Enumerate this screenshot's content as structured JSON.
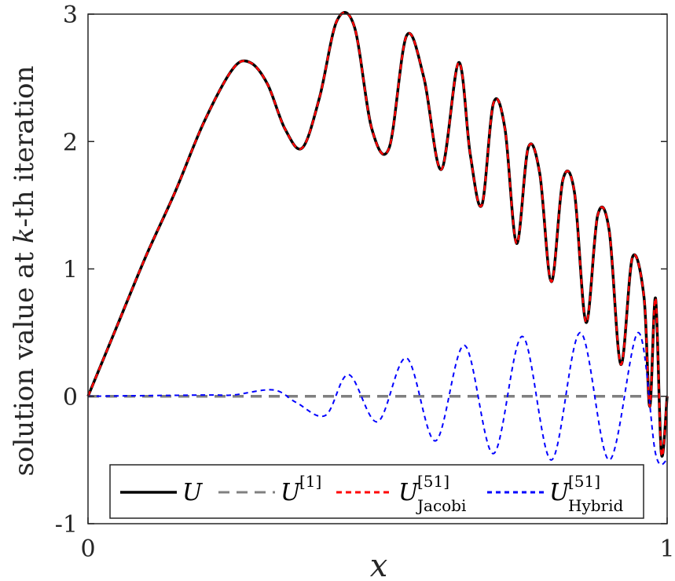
{
  "chart_data": {
    "type": "line",
    "xlabel": "x",
    "ylabel": "solution value at k-th iteration",
    "xlim": [
      0,
      1
    ],
    "ylim": [
      -1,
      3
    ],
    "xticks": [
      "0",
      "1"
    ],
    "yticks": [
      "-1",
      "0",
      "1",
      "2",
      "3"
    ],
    "grid": false,
    "legend_position": "bottom, horizontal",
    "series": [
      {
        "name": "U",
        "color": "#000000",
        "style": "solid",
        "x": [
          0,
          0.05,
          0.1,
          0.15,
          0.2,
          0.25,
          0.28,
          0.31,
          0.34,
          0.37,
          0.4,
          0.43,
          0.46,
          0.49,
          0.52,
          0.55,
          0.58,
          0.61,
          0.64,
          0.66,
          0.68,
          0.7,
          0.72,
          0.74,
          0.76,
          0.78,
          0.8,
          0.82,
          0.84,
          0.86,
          0.88,
          0.9,
          0.92,
          0.94,
          0.96,
          0.97,
          0.98,
          0.99,
          1.0
        ],
        "y": [
          0,
          0.55,
          1.1,
          1.6,
          2.15,
          2.57,
          2.62,
          2.45,
          2.1,
          1.95,
          2.35,
          2.95,
          2.9,
          2.1,
          1.95,
          2.83,
          2.5,
          1.78,
          2.62,
          1.9,
          1.5,
          2.3,
          2.1,
          1.2,
          1.95,
          1.75,
          0.9,
          1.7,
          1.6,
          0.58,
          1.42,
          1.3,
          0.25,
          1.09,
          0.78,
          -0.08,
          0.77,
          -0.45,
          0
        ]
      },
      {
        "name": "U^[1]",
        "color": "#808080",
        "style": "dashed",
        "x": [
          0,
          1
        ],
        "y": [
          0,
          0
        ]
      },
      {
        "name": "U_Jacobi^[51]",
        "color": "#ff0000",
        "style": "dashed",
        "x": [
          0,
          0.05,
          0.1,
          0.15,
          0.2,
          0.25,
          0.28,
          0.31,
          0.34,
          0.37,
          0.4,
          0.43,
          0.46,
          0.49,
          0.52,
          0.55,
          0.58,
          0.61,
          0.64,
          0.66,
          0.68,
          0.7,
          0.72,
          0.74,
          0.76,
          0.78,
          0.8,
          0.82,
          0.84,
          0.86,
          0.88,
          0.9,
          0.92,
          0.94,
          0.96,
          0.97,
          0.98,
          0.99,
          1.0
        ],
        "y": [
          0,
          0.55,
          1.1,
          1.6,
          2.15,
          2.57,
          2.62,
          2.45,
          2.1,
          1.95,
          2.35,
          2.95,
          2.9,
          2.1,
          1.95,
          2.83,
          2.5,
          1.78,
          2.62,
          1.9,
          1.5,
          2.3,
          2.1,
          1.2,
          1.95,
          1.75,
          0.9,
          1.7,
          1.6,
          0.58,
          1.42,
          1.3,
          0.25,
          1.09,
          0.78,
          -0.08,
          0.77,
          -0.45,
          0
        ]
      },
      {
        "name": "U_Hybrid^[51]",
        "color": "#0000ff",
        "style": "dashed",
        "x": [
          0,
          0.2,
          0.25,
          0.32,
          0.36,
          0.41,
          0.45,
          0.5,
          0.55,
          0.6,
          0.65,
          0.7,
          0.75,
          0.8,
          0.85,
          0.9,
          0.95,
          0.98,
          1.0
        ],
        "y": [
          0,
          0.01,
          0.01,
          0.05,
          -0.05,
          -0.15,
          0.17,
          -0.2,
          0.3,
          -0.35,
          0.4,
          -0.45,
          0.47,
          -0.5,
          0.5,
          -0.5,
          0.5,
          -0.45,
          -0.5
        ]
      }
    ]
  },
  "legend": {
    "items": [
      {
        "base": "U",
        "sup": "",
        "sub": ""
      },
      {
        "base": "U",
        "sup": "[1]",
        "sub": ""
      },
      {
        "base": "U",
        "sup": "[51]",
        "sub": "Jacobi"
      },
      {
        "base": "U",
        "sup": "[51]",
        "sub": "Hybrid"
      }
    ]
  },
  "axis_title_parts": {
    "ylabel_prefix": "solution value at ",
    "ylabel_var": "k",
    "ylabel_suffix": "-th iteration",
    "xlabel_var": "x"
  }
}
